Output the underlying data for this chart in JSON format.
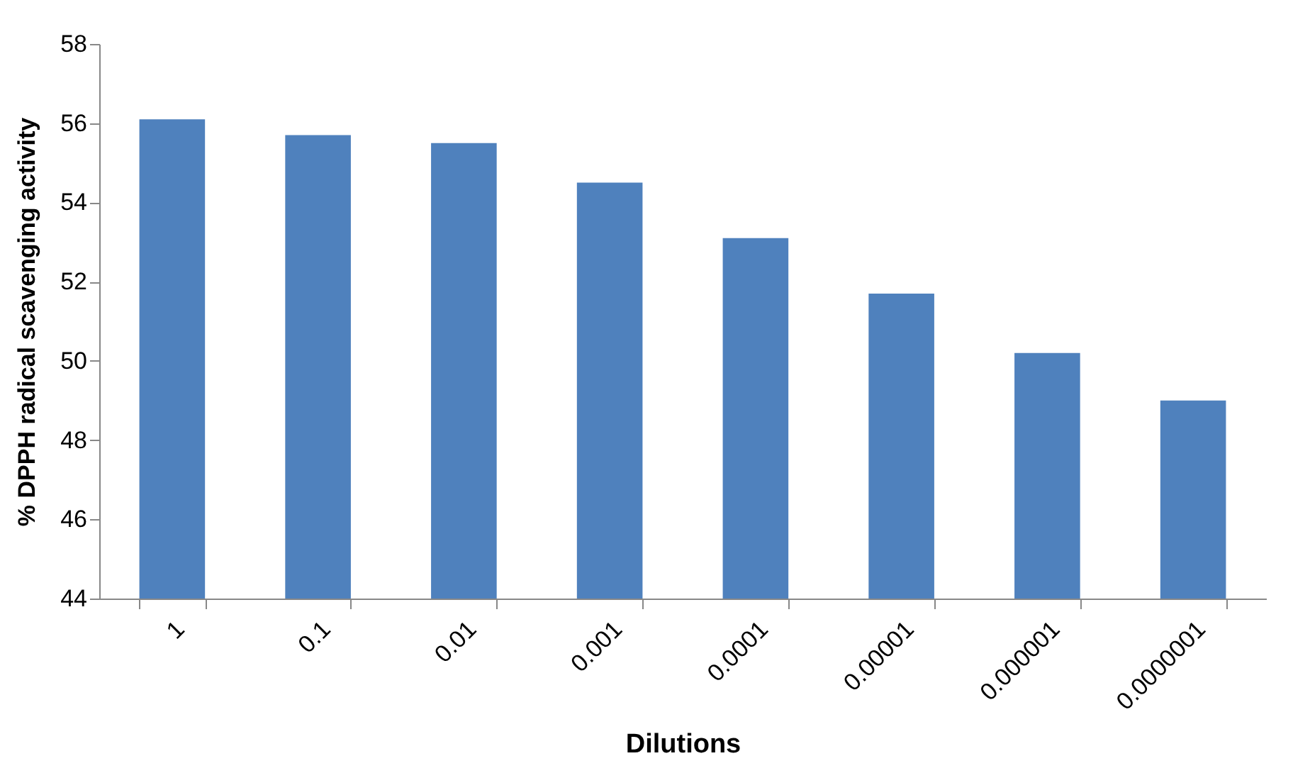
{
  "chart_data": {
    "type": "bar",
    "xlabel": "Dilutions",
    "ylabel": "% DPPH radical scavenging activity",
    "categories": [
      "1",
      "0.1",
      "0.01",
      "0.001",
      "0.0001",
      "0.00001",
      "0.000001",
      "0.0000001"
    ],
    "values": [
      56.1,
      55.7,
      55.5,
      54.5,
      53.1,
      51.7,
      50.2,
      49.0
    ],
    "color": "#4f81bd",
    "ylim": [
      44,
      58
    ],
    "yticks": [
      44,
      46,
      48,
      50,
      52,
      54,
      56,
      58
    ],
    "grid": false
  }
}
